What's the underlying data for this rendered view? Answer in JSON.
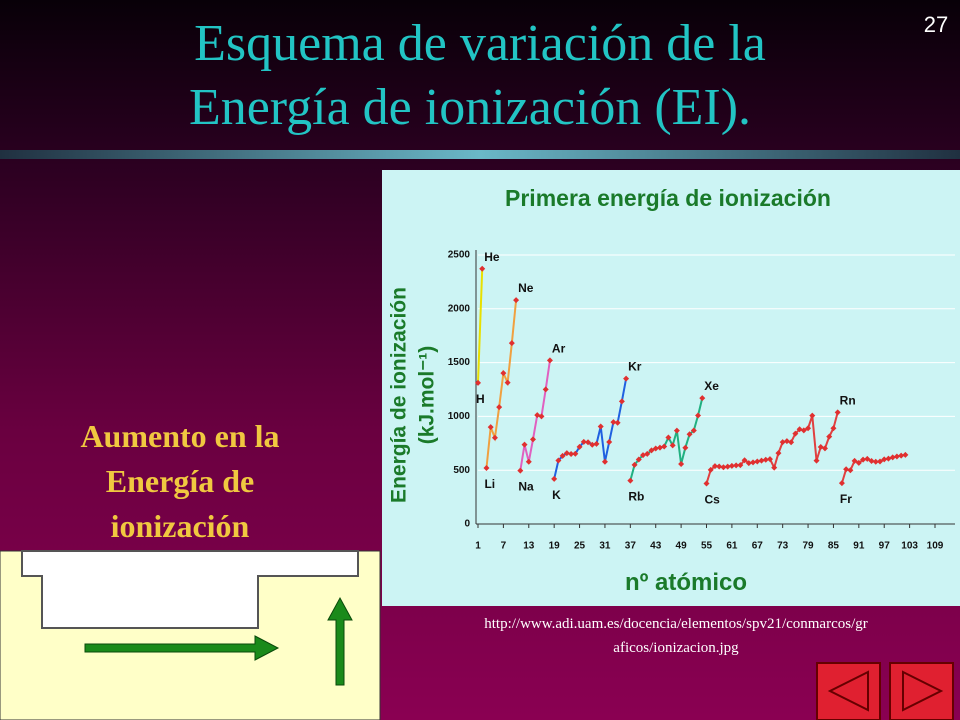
{
  "slide": {
    "title": [
      "Esquema de variación de la",
      "Energía de ionización (EI)."
    ],
    "page_number": "27",
    "side_text": [
      "Aumento en la",
      "Energía de",
      "ionización"
    ],
    "source": [
      "http://www.adi.uam.es/docencia/elementos/spv21/conmarcos/gr",
      "aficos/ionizacion.jpg"
    ]
  },
  "chart_data": {
    "type": "line",
    "title": "Primera energía de ionización",
    "xlabel": "nº atómico",
    "ylabel": [
      "Energía de ionización",
      "(kJ.mol⁻¹)"
    ],
    "xlim": [
      1,
      109
    ],
    "ylim": [
      0,
      2500
    ],
    "xticks": [
      1,
      7,
      13,
      19,
      25,
      31,
      37,
      43,
      49,
      55,
      61,
      67,
      73,
      79,
      85,
      91,
      97,
      103,
      109
    ],
    "yticks": [
      0,
      500,
      1000,
      1500,
      2000,
      2500
    ],
    "grid": true,
    "marker_color": "#e03030",
    "series": [
      {
        "color": "#e8e000",
        "x": [
          1,
          2
        ],
        "values": [
          1312,
          2372
        ]
      },
      {
        "color": "#f0a040",
        "x": [
          3,
          4,
          5,
          6,
          7,
          8,
          9,
          10
        ],
        "values": [
          520,
          900,
          801,
          1086,
          1402,
          1314,
          1681,
          2081
        ]
      },
      {
        "color": "#e060c0",
        "x": [
          11,
          12,
          13,
          14,
          15,
          16,
          17,
          18
        ],
        "values": [
          496,
          738,
          578,
          787,
          1012,
          1000,
          1251,
          1521
        ]
      },
      {
        "color": "#2060e0",
        "x": [
          19,
          20,
          21,
          22,
          23,
          24,
          25,
          26,
          27,
          28,
          29,
          30,
          31,
          32,
          33,
          34,
          35,
          36
        ],
        "values": [
          419,
          590,
          633,
          659,
          651,
          653,
          717,
          763,
          760,
          737,
          745,
          906,
          579,
          762,
          947,
          941,
          1140,
          1351
        ]
      },
      {
        "color": "#20b080",
        "x": [
          37,
          38,
          39,
          40,
          41,
          42,
          43,
          44,
          45,
          46,
          47,
          48,
          49,
          50,
          51,
          52,
          53,
          54
        ],
        "values": [
          403,
          550,
          600,
          640,
          652,
          684,
          702,
          710,
          720,
          804,
          731,
          868,
          558,
          709,
          834,
          869,
          1008,
          1170
        ]
      },
      {
        "color": "#e04040",
        "x": [
          55,
          56,
          57,
          58,
          59,
          60,
          61,
          62,
          63,
          64,
          65,
          66,
          67,
          68,
          69,
          70,
          71,
          72,
          73,
          74,
          75,
          76,
          77,
          78,
          79,
          80,
          81,
          82,
          83,
          84,
          85,
          86
        ],
        "values": [
          376,
          503,
          538,
          534,
          527,
          533,
          540,
          545,
          547,
          593,
          566,
          573,
          581,
          589,
          597,
          603,
          524,
          659,
          761,
          770,
          760,
          840,
          880,
          870,
          890,
          1007,
          589,
          716,
          703,
          812,
          890,
          1037
        ]
      },
      {
        "color": "#e04040",
        "x": [
          87,
          88,
          89,
          90,
          91,
          92,
          93,
          94,
          95,
          96,
          97,
          98,
          99,
          100,
          101,
          102
        ],
        "values": [
          380,
          509,
          499,
          587,
          568,
          598,
          605,
          585,
          578,
          581,
          601,
          608,
          619,
          627,
          635,
          642
        ]
      }
    ],
    "annotations": [
      {
        "text": "H",
        "x": 1
      },
      {
        "text": "He",
        "x": 2
      },
      {
        "text": "Li",
        "x": 3
      },
      {
        "text": "Ne",
        "x": 10
      },
      {
        "text": "Na",
        "x": 11
      },
      {
        "text": "Ar",
        "x": 18
      },
      {
        "text": "K",
        "x": 19
      },
      {
        "text": "Kr",
        "x": 36
      },
      {
        "text": "Rb",
        "x": 37
      },
      {
        "text": "Xe",
        "x": 54
      },
      {
        "text": "Cs",
        "x": 55
      },
      {
        "text": "Rn",
        "x": 86
      },
      {
        "text": "Fr",
        "x": 87
      }
    ]
  }
}
